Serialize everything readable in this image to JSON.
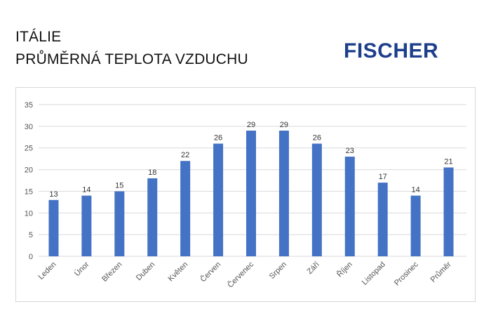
{
  "header": {
    "title_line1": "ITÁLIE",
    "title_line2": "PRŮMĚRNÁ TEPLOTA VZDUCHU",
    "brand": "FISCHER"
  },
  "colors": {
    "bar": "#4472c4",
    "brand": "#1d3f8b",
    "gridline": "#d9d9d9"
  },
  "chart_data": {
    "type": "bar",
    "title": "PRŮMĚRNÁ TEPLOTA VZDUCHU",
    "xlabel": "",
    "ylabel": "",
    "ylim": [
      0,
      35
    ],
    "yticks": [
      0,
      5,
      10,
      15,
      20,
      25,
      30,
      35
    ],
    "grid": true,
    "legend": "none",
    "categories": [
      "Leden",
      "Únor",
      "Březen",
      "Duben",
      "Květen",
      "Červen",
      "Červenec",
      "Srpen",
      "Září",
      "Říjen",
      "Listopad",
      "Prosinec",
      "Průměr"
    ],
    "values": [
      13,
      14,
      15,
      18,
      22,
      26,
      29,
      29,
      26,
      23,
      17,
      14,
      20.5
    ],
    "data_labels": [
      "13",
      "14",
      "15",
      "18",
      "22",
      "26",
      "29",
      "29",
      "26",
      "23",
      "17",
      "14",
      "21"
    ]
  }
}
